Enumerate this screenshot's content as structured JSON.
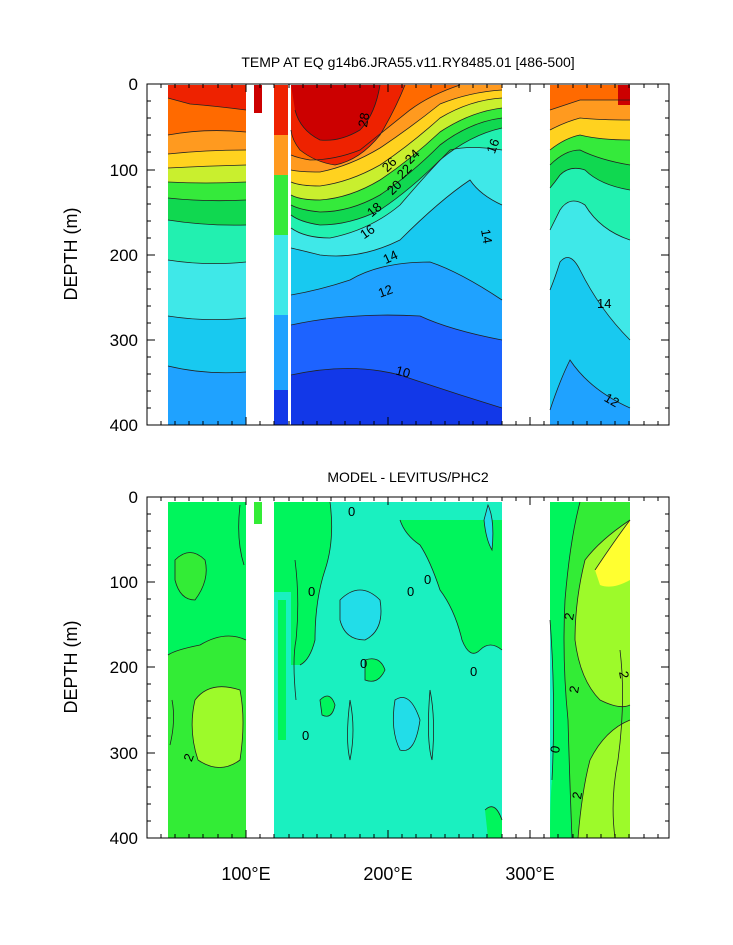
{
  "chart_data": [
    {
      "type": "contour",
      "title": "TEMP AT EQ g14b6.JRA55.v11.RY8485.01 [486-500]",
      "xlabel": "",
      "ylabel": "DEPTH (m)",
      "xlim": [
        27,
        395
      ],
      "ylim": [
        400,
        0
      ],
      "yticks": [
        "0",
        "100",
        "200",
        "300",
        "400"
      ],
      "land_gaps_lon": [
        [
          97,
          125
        ],
        [
          278,
          315
        ]
      ],
      "contour_labels": [
        "28",
        "26",
        "24",
        "22",
        "20",
        "18",
        "16",
        "14",
        "12",
        "10",
        "16",
        "14",
        "14",
        "12"
      ],
      "color_bands": [
        {
          "min": 28,
          "color": "#cc0000"
        },
        {
          "min": 26,
          "color": "#ee2200"
        },
        {
          "min": 24,
          "color": "#ff6a00"
        },
        {
          "min": 22,
          "color": "#ff9a1f"
        },
        {
          "min": 20,
          "color": "#ffd21f"
        },
        {
          "min": 18,
          "color": "#c9ef2e"
        },
        {
          "min": 16,
          "color": "#35ea3b"
        },
        {
          "min": 15,
          "color": "#10d850"
        },
        {
          "min": 14,
          "color": "#22f0b0"
        },
        {
          "min": 13,
          "color": "#3fe8e8"
        },
        {
          "min": 12,
          "color": "#18c9f0"
        },
        {
          "min": 11,
          "color": "#1fa2ff"
        },
        {
          "min": 10,
          "color": "#1d63ff"
        },
        {
          "min": 9,
          "color": "#1238e8"
        }
      ]
    },
    {
      "type": "contour",
      "title": "MODEL - LEVITUS/PHC2",
      "xlabel": "",
      "ylabel": "DEPTH (m)",
      "xlim": [
        27,
        395
      ],
      "ylim": [
        400,
        0
      ],
      "yticks": [
        "0",
        "100",
        "200",
        "300",
        "400"
      ],
      "xticks": [
        "100°E",
        "200°E",
        "300°E"
      ],
      "land_gaps_lon": [
        [
          97,
          125
        ],
        [
          278,
          315
        ]
      ],
      "contour_labels": [
        "0",
        "0",
        "0",
        "0",
        "0",
        "0",
        "0",
        "2",
        "2",
        "2",
        "2",
        "2",
        "0"
      ],
      "color_bands": [
        {
          "min": 4,
          "color": "#ffff30"
        },
        {
          "min": 2,
          "color": "#9dfa2a"
        },
        {
          "min": 1,
          "color": "#33ec36"
        },
        {
          "min": 0,
          "color": "#00f55c"
        },
        {
          "min": -1,
          "color": "#1af0c0"
        },
        {
          "min": -2,
          "color": "#22dde8"
        }
      ]
    }
  ]
}
